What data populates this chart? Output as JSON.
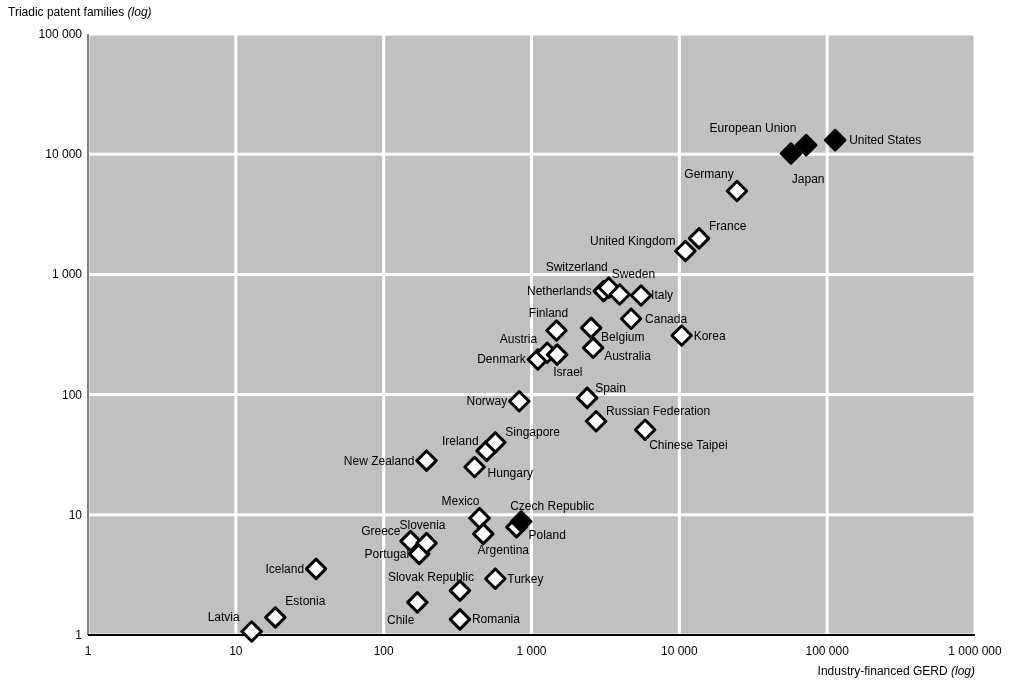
{
  "chart_data": {
    "type": "scatter",
    "xlabel": "Industry-financed GERD (log)",
    "ylabel": "Triadic patent families (log)",
    "log": "xy",
    "grid": true,
    "marker": "diamond",
    "xlim": [
      1,
      1000000
    ],
    "ylim": [
      1,
      100000
    ],
    "xticks": [
      1,
      10,
      100,
      {
        "value": 1000,
        "label": "1 000"
      },
      {
        "value": 10000,
        "label": "10 000"
      },
      {
        "value": 100000,
        "label": "100 000"
      },
      {
        "value": 1000000,
        "label": "1 000 000"
      }
    ],
    "yticks": [
      1,
      10,
      100,
      {
        "value": 1000,
        "label": "1 000"
      },
      {
        "value": 10000,
        "label": "10 000"
      },
      {
        "value": 100000,
        "label": "100 000"
      }
    ],
    "series": [
      {
        "color": "#ffffff",
        "x": [
          12.8,
          18.5,
          34.9,
          169,
          328,
          328,
          569,
          174,
          152,
          195,
          445,
          472,
          792,
          195,
          412,
          497,
          569,
          826,
          2380,
          2735,
          5870,
          1104,
          1277,
          1492,
          1476,
          2531,
          2612,
          4718,
          10370,
          3080,
          3330,
          3950,
          5510,
          10990,
          13590,
          24550
        ],
        "values": [
          1.07,
          1.4,
          3.55,
          1.87,
          2.34,
          1.35,
          2.94,
          4.73,
          6.04,
          5.81,
          9.38,
          6.94,
          7.9,
          28.2,
          25,
          34,
          40,
          88,
          94,
          60,
          51,
          196,
          223,
          215,
          341,
          359,
          245,
          428,
          310,
          726,
          775,
          681,
          668,
          1564,
          1995,
          4945
        ]
      },
      {
        "color": "#000000",
        "x": [
          56900,
          72100,
          113300,
          852
        ],
        "values": [
          10130,
          11890,
          13090,
          8.8
        ]
      }
    ],
    "annotations": [
      {
        "text": "Latvia",
        "x": 12.8,
        "y": 1.07
      },
      {
        "text": "Estonia",
        "x": 18.5,
        "y": 1.4
      },
      {
        "text": "Iceland",
        "x": 34.9,
        "y": 3.55
      },
      {
        "text": "Chile",
        "x": 169,
        "y": 1.87
      },
      {
        "text": "Slovak Republic",
        "x": 328,
        "y": 2.34
      },
      {
        "text": "Romania",
        "x": 328,
        "y": 1.35
      },
      {
        "text": "Turkey",
        "x": 569,
        "y": 2.94
      },
      {
        "text": "Portugal",
        "x": 174,
        "y": 4.73
      },
      {
        "text": "Greece",
        "x": 152,
        "y": 6.04
      },
      {
        "text": "Slovenia",
        "x": 195,
        "y": 5.81
      },
      {
        "text": "Mexico",
        "x": 445,
        "y": 9.38
      },
      {
        "text": "Argentina",
        "x": 472,
        "y": 6.94
      },
      {
        "text": "Poland",
        "x": 792,
        "y": 7.9
      },
      {
        "text": "New Zealand",
        "x": 195,
        "y": 28.2
      },
      {
        "text": "Hungary",
        "x": 412,
        "y": 25
      },
      {
        "text": "Ireland",
        "x": 497,
        "y": 34
      },
      {
        "text": "Singapore",
        "x": 569,
        "y": 40
      },
      {
        "text": "Norway",
        "x": 826,
        "y": 88
      },
      {
        "text": "Spain",
        "x": 2380,
        "y": 94
      },
      {
        "text": "Russian Federation",
        "x": 2735,
        "y": 60
      },
      {
        "text": "Chinese Taipei",
        "x": 5870,
        "y": 51
      },
      {
        "text": "Denmark",
        "x": 1104,
        "y": 196
      },
      {
        "text": "Austria",
        "x": 1277,
        "y": 223
      },
      {
        "text": "Israel",
        "x": 1492,
        "y": 215
      },
      {
        "text": "Finland",
        "x": 1476,
        "y": 341
      },
      {
        "text": "Belgium",
        "x": 2531,
        "y": 359
      },
      {
        "text": "Australia",
        "x": 2612,
        "y": 245
      },
      {
        "text": "Canada",
        "x": 4718,
        "y": 428
      },
      {
        "text": "Korea",
        "x": 10370,
        "y": 310
      },
      {
        "text": "Netherlands",
        "x": 3080,
        "y": 726
      },
      {
        "text": "Switzerland",
        "x": 3330,
        "y": 775
      },
      {
        "text": "Sweden",
        "x": 3950,
        "y": 681
      },
      {
        "text": "Italy",
        "x": 5510,
        "y": 668
      },
      {
        "text": "United Kingdom",
        "x": 10990,
        "y": 1564
      },
      {
        "text": "France",
        "x": 13590,
        "y": 1995
      },
      {
        "text": "Germany",
        "x": 24550,
        "y": 4945
      },
      {
        "text": "European Union",
        "x": 56900,
        "y": 10130
      },
      {
        "text": "Japan",
        "x": 72100,
        "y": 11890
      },
      {
        "text": "United States",
        "x": 113300,
        "y": 13090
      },
      {
        "text": "Czech Republic",
        "x": 852,
        "y": 8.8
      }
    ]
  }
}
